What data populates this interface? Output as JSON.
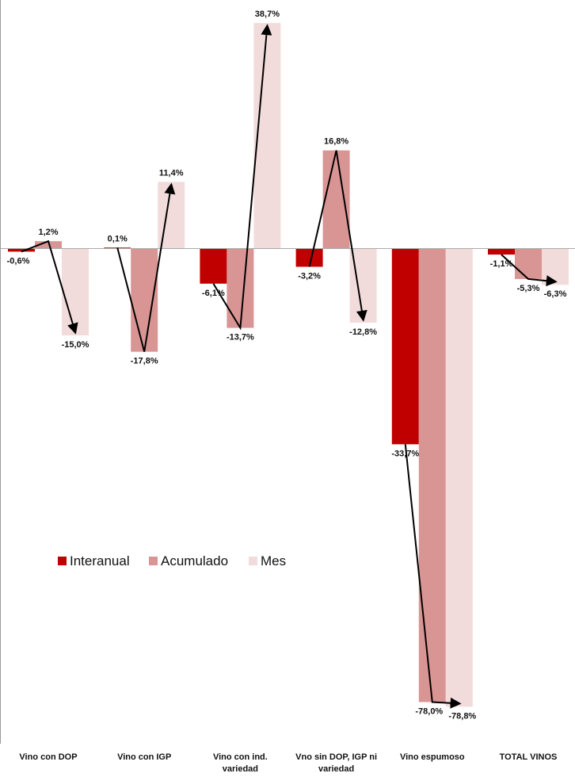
{
  "chart_data": {
    "type": "bar",
    "categories": [
      [
        "Vino con DOP"
      ],
      [
        "Vino con IGP"
      ],
      [
        "Vino con ind.",
        "variedad"
      ],
      [
        "Vno sin DOP, IGP ni",
        "variedad"
      ],
      [
        "Vino espumoso"
      ],
      [
        "TOTAL VINOS"
      ]
    ],
    "series": [
      {
        "name": "Interanual",
        "color": "#c00000",
        "values": [
          -0.6,
          0.1,
          -6.1,
          -3.2,
          -33.7,
          -1.1
        ],
        "labels": [
          "-0,6%",
          "0,1%",
          "-6,1%",
          "-3,2%",
          "-33,7%",
          "-1,1%"
        ]
      },
      {
        "name": "Acumulado",
        "color": "#d99594",
        "values": [
          1.2,
          -17.8,
          -13.7,
          16.8,
          -78.0,
          -5.3
        ],
        "labels": [
          "1,2%",
          "-17,8%",
          "-13,7%",
          "16,8%",
          "-78,0%",
          "-5,3%"
        ]
      },
      {
        "name": "Mes",
        "color": "#f2dcdb",
        "values": [
          -15.0,
          11.4,
          38.7,
          -12.8,
          -78.8,
          -6.3
        ],
        "labels": [
          "-15,0%",
          "11,4%",
          "38,7%",
          "-12,8%",
          "-78,8%",
          "-6,3%"
        ]
      }
    ],
    "ylim": [
      -80,
      42
    ],
    "grid": false,
    "legend_position": "center-left",
    "trend_arrows": true
  }
}
